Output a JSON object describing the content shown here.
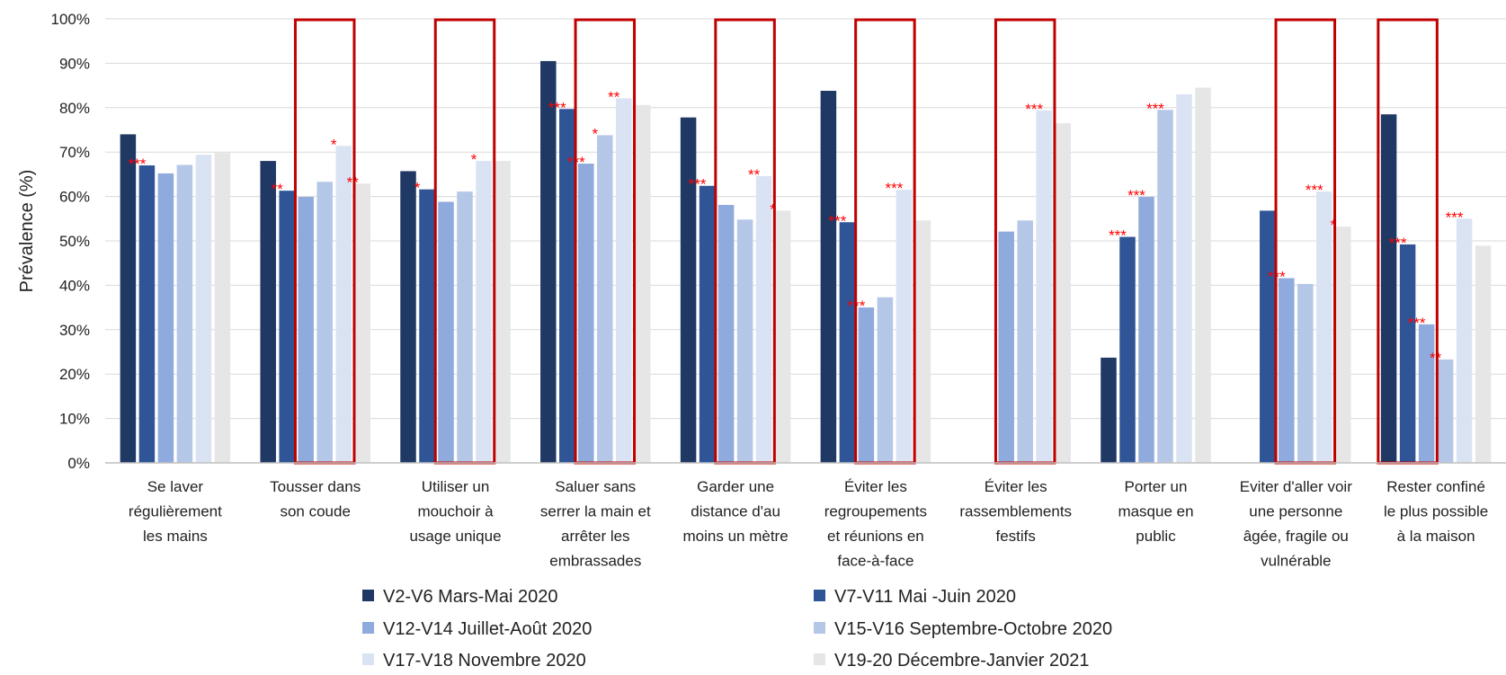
{
  "chart_data": {
    "type": "bar",
    "title": "",
    "xlabel": "",
    "ylabel": "Prévalence (%)",
    "ylim": [
      0,
      100
    ],
    "yticks": [
      "0%",
      "10%",
      "20%",
      "30%",
      "40%",
      "50%",
      "60%",
      "70%",
      "80%",
      "90%",
      "100%"
    ],
    "grid": true,
    "legend_position": "bottom",
    "categories": [
      [
        "Se laver",
        "régulièrement",
        "les mains"
      ],
      [
        "Tousser dans",
        "son coude"
      ],
      [
        "Utiliser un",
        "mouchoir à",
        "usage unique"
      ],
      [
        "Saluer sans",
        "serrer la main et",
        "arrêter les",
        "embrassades"
      ],
      [
        "Garder une",
        "distance d'au",
        "moins un mètre"
      ],
      [
        "Éviter les",
        "regroupements",
        "et réunions en",
        "face-à-face"
      ],
      [
        "Éviter les",
        "rassemblements",
        "festifs"
      ],
      [
        "Porter un",
        "masque en",
        "public"
      ],
      [
        "Eviter d'aller voir",
        "une personne",
        "âgée, fragile ou",
        "vulnérable"
      ],
      [
        "Rester confiné",
        "le plus possible",
        "à la maison"
      ]
    ],
    "series": [
      {
        "name": "V2-V6 Mars-Mai 2020",
        "color": "#203864",
        "values": [
          74,
          68,
          65.7,
          90.5,
          77.8,
          83.8,
          null,
          23.7,
          null,
          78.5
        ],
        "significance": [
          "",
          "",
          "",
          "",
          "",
          "",
          "",
          "",
          "",
          ""
        ]
      },
      {
        "name": "V7-V11 Mai -Juin 2020",
        "color": "#2f5597",
        "values": [
          67,
          61.3,
          61.6,
          79.7,
          62.4,
          54.2,
          null,
          50.9,
          56.8,
          49.2
        ],
        "significance": [
          "***",
          "**",
          "*",
          "***",
          "***",
          "***",
          "",
          "***",
          "",
          "***"
        ]
      },
      {
        "name": "V12-V14 Juillet-Août 2020",
        "color": "#8faadc",
        "values": [
          65.2,
          59.9,
          58.8,
          67.4,
          58.1,
          35,
          52.1,
          59.9,
          41.6,
          31.2
        ],
        "significance": [
          "",
          "",
          "",
          "***",
          "",
          "***",
          "",
          "***",
          "***",
          "***"
        ]
      },
      {
        "name": "V15-V16 Septembre-Octobre 2020",
        "color": "#b4c7e7",
        "values": [
          67.1,
          63.3,
          61.1,
          73.8,
          54.8,
          37.3,
          54.6,
          79.5,
          40.3,
          23.3
        ],
        "significance": [
          "",
          "",
          "",
          "*",
          "",
          "",
          "",
          "***",
          "",
          "**"
        ]
      },
      {
        "name": "V17-V18 Novembre 2020",
        "color": "#dae3f3",
        "values": [
          69.4,
          71.4,
          68,
          82.1,
          64.6,
          61.5,
          79.4,
          83,
          61.1,
          55
        ],
        "significance": [
          "",
          "*",
          "*",
          "**",
          "**",
          "***",
          "***",
          "",
          "***",
          "***"
        ]
      },
      {
        "name": "V19-20 Décembre-Janvier 2021",
        "color": "#e7e6e6",
        "values": [
          69.8,
          62.9,
          68,
          80.6,
          56.8,
          54.6,
          76.5,
          84.5,
          53.2,
          48.9
        ],
        "significance": [
          "",
          "**",
          "",
          "",
          "*",
          "",
          "",
          "",
          "*",
          ""
        ]
      }
    ],
    "highlight_boxes": [
      {
        "category_index": 1,
        "series_from": 2,
        "series_to": 4
      },
      {
        "category_index": 2,
        "series_from": 2,
        "series_to": 4
      },
      {
        "category_index": 3,
        "series_from": 2,
        "series_to": 4
      },
      {
        "category_index": 4,
        "series_from": 2,
        "series_to": 4
      },
      {
        "category_index": 5,
        "series_from": 2,
        "series_to": 4
      },
      {
        "category_index": 6,
        "series_from": 2,
        "series_to": 4
      },
      {
        "category_index": 8,
        "series_from": 2,
        "series_to": 4
      },
      {
        "category_index": 9,
        "series_from": 0,
        "series_to": 2
      }
    ],
    "highlight_color": "#c00000"
  }
}
